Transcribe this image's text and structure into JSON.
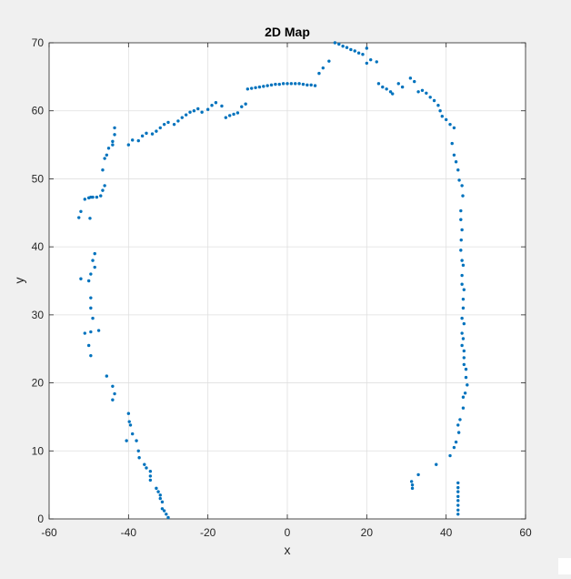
{
  "chart_data": {
    "type": "scatter",
    "title": "2D Map",
    "xlabel": "x",
    "ylabel": "y",
    "xlim": [
      -60,
      60
    ],
    "ylim": [
      0,
      70
    ],
    "xticks": [
      -60,
      -40,
      -20,
      0,
      20,
      40,
      60
    ],
    "yticks": [
      0,
      10,
      20,
      30,
      40,
      50,
      60,
      70
    ],
    "grid": true,
    "marker_color": "#0072bd",
    "series": [
      {
        "points": [
          [
            -52.5,
            44.3
          ],
          [
            -52,
            45.2
          ],
          [
            -51,
            47
          ],
          [
            -50,
            47.2
          ],
          [
            -49,
            47.3
          ],
          [
            -48,
            47.3
          ],
          [
            -47,
            47.5
          ],
          [
            -46.5,
            48.3
          ],
          [
            -46,
            49
          ],
          [
            -46.5,
            51.3
          ],
          [
            -46,
            53
          ],
          [
            -45.5,
            53.5
          ],
          [
            -45,
            54.5
          ],
          [
            -44,
            55
          ],
          [
            -44,
            55.5
          ],
          [
            -43.5,
            56.5
          ],
          [
            -43.5,
            57.5
          ],
          [
            -52,
            35.3
          ],
          [
            -49.7,
            44.2
          ],
          [
            -49.5,
            47.3
          ],
          [
            -48.5,
            39
          ],
          [
            -49,
            38
          ],
          [
            -48.5,
            37
          ],
          [
            -49.5,
            36
          ],
          [
            -50,
            35
          ],
          [
            -49.5,
            32.5
          ],
          [
            -49.5,
            31
          ],
          [
            -49,
            29.5
          ],
          [
            -47.5,
            27.7
          ],
          [
            -49.5,
            27.5
          ],
          [
            -51,
            27.3
          ],
          [
            -50,
            25.5
          ],
          [
            -49.5,
            24
          ],
          [
            -45.5,
            21
          ],
          [
            -44,
            19.5
          ],
          [
            -43.5,
            18.4
          ],
          [
            -44,
            17.5
          ],
          [
            -40,
            15.5
          ],
          [
            -39.8,
            14.3
          ],
          [
            -39.5,
            13.8
          ],
          [
            -39,
            12.5
          ],
          [
            -40.5,
            11.5
          ],
          [
            -38,
            11.5
          ],
          [
            -37.5,
            10
          ],
          [
            -37.3,
            9
          ],
          [
            -36,
            8
          ],
          [
            -35.5,
            7.5
          ],
          [
            -34.5,
            7
          ],
          [
            -34.5,
            6.3
          ],
          [
            -34.5,
            5.7
          ],
          [
            -33,
            4.5
          ],
          [
            -32.5,
            4
          ],
          [
            -32,
            3.5
          ],
          [
            -32,
            3
          ],
          [
            -31.5,
            2.5
          ],
          [
            -31.5,
            1.5
          ],
          [
            -31,
            1.2
          ],
          [
            -30.5,
            0.7
          ],
          [
            -30,
            0.2
          ],
          [
            -40,
            55
          ],
          [
            -39,
            55.7
          ],
          [
            -37.5,
            55.6
          ],
          [
            -36.5,
            56.3
          ],
          [
            -35.5,
            56.7
          ],
          [
            -34,
            56.6
          ],
          [
            -33,
            57
          ],
          [
            -32,
            57.5
          ],
          [
            -31,
            58
          ],
          [
            -30,
            58.3
          ],
          [
            -28.5,
            58
          ],
          [
            -27.5,
            58.5
          ],
          [
            -26.5,
            59
          ],
          [
            -25.5,
            59.4
          ],
          [
            -24.5,
            59.8
          ],
          [
            -23.5,
            60
          ],
          [
            -22.5,
            60.3
          ],
          [
            -21.5,
            59.8
          ],
          [
            -20,
            60.2
          ],
          [
            -19,
            60.8
          ],
          [
            -18,
            61.2
          ],
          [
            -16.5,
            60.7
          ],
          [
            -15.5,
            59
          ],
          [
            -14.5,
            59.3
          ],
          [
            -13.5,
            59.5
          ],
          [
            -12.5,
            59.7
          ],
          [
            -11.5,
            60.6
          ],
          [
            -10.5,
            61
          ],
          [
            -10,
            63.2
          ],
          [
            -9,
            63.3
          ],
          [
            -8,
            63.4
          ],
          [
            -7,
            63.5
          ],
          [
            -6,
            63.6
          ],
          [
            -5,
            63.7
          ],
          [
            -4,
            63.8
          ],
          [
            -3,
            63.9
          ],
          [
            -2,
            63.9
          ],
          [
            -1,
            64
          ],
          [
            0,
            64
          ],
          [
            1,
            64
          ],
          [
            2,
            64
          ],
          [
            3,
            64
          ],
          [
            4,
            63.9
          ],
          [
            5,
            63.8
          ],
          [
            6,
            63.8
          ],
          [
            7,
            63.7
          ],
          [
            8,
            65.5
          ],
          [
            9,
            66.3
          ],
          [
            10.5,
            67.3
          ],
          [
            12,
            70
          ],
          [
            13,
            69.8
          ],
          [
            14,
            69.5
          ],
          [
            15,
            69.3
          ],
          [
            16,
            69
          ],
          [
            17,
            68.8
          ],
          [
            18,
            68.5
          ],
          [
            19,
            68.3
          ],
          [
            20,
            69.2
          ],
          [
            20,
            67
          ],
          [
            21,
            67.5
          ],
          [
            22.5,
            67.2
          ],
          [
            23,
            64
          ],
          [
            24,
            63.5
          ],
          [
            25,
            63.2
          ],
          [
            26,
            62.8
          ],
          [
            26.5,
            62.5
          ],
          [
            28,
            64
          ],
          [
            29,
            63.5
          ],
          [
            31,
            64.8
          ],
          [
            32,
            64.3
          ],
          [
            33,
            62.8
          ],
          [
            34,
            63
          ],
          [
            35,
            62.6
          ],
          [
            36,
            62
          ],
          [
            37,
            61.5
          ],
          [
            38,
            60.8
          ],
          [
            38.5,
            60
          ],
          [
            39,
            59.2
          ],
          [
            40,
            58.7
          ],
          [
            41,
            58
          ],
          [
            42,
            57.5
          ],
          [
            41.5,
            55.2
          ],
          [
            42,
            53.5
          ],
          [
            42.5,
            52.5
          ],
          [
            43,
            51.3
          ],
          [
            43.3,
            49.8
          ],
          [
            44,
            49
          ],
          [
            44.2,
            47.5
          ],
          [
            43.7,
            45.3
          ],
          [
            43.7,
            44
          ],
          [
            44,
            42.5
          ],
          [
            43.8,
            41
          ],
          [
            43.7,
            39.5
          ],
          [
            44,
            38
          ],
          [
            44.3,
            37.3
          ],
          [
            44,
            35.8
          ],
          [
            44,
            34.5
          ],
          [
            44.5,
            33.7
          ],
          [
            44.3,
            32.3
          ],
          [
            44.3,
            31
          ],
          [
            44,
            29.5
          ],
          [
            44.5,
            28.7
          ],
          [
            44,
            27.3
          ],
          [
            44.3,
            26.5
          ],
          [
            44,
            25.5
          ],
          [
            44.5,
            24.7
          ],
          [
            44.5,
            23.7
          ],
          [
            44.5,
            22.7
          ],
          [
            45,
            22
          ],
          [
            45,
            20.8
          ],
          [
            45.3,
            19.7
          ],
          [
            44.8,
            18.5
          ],
          [
            44.3,
            17.9
          ],
          [
            44.3,
            16.3
          ],
          [
            43.5,
            14.6
          ],
          [
            43,
            13.8
          ],
          [
            43.2,
            12.7
          ],
          [
            42.5,
            11.3
          ],
          [
            42,
            10.5
          ],
          [
            41,
            9.3
          ],
          [
            37.5,
            8
          ],
          [
            33,
            6.5
          ],
          [
            31.3,
            5.5
          ],
          [
            31.5,
            5
          ],
          [
            31.5,
            4.5
          ],
          [
            43,
            5.3
          ],
          [
            43,
            4.6
          ],
          [
            43,
            4
          ],
          [
            43,
            3.3
          ],
          [
            43,
            2.7
          ],
          [
            43,
            2
          ],
          [
            43,
            1.3
          ],
          [
            43,
            0.7
          ]
        ]
      }
    ]
  }
}
